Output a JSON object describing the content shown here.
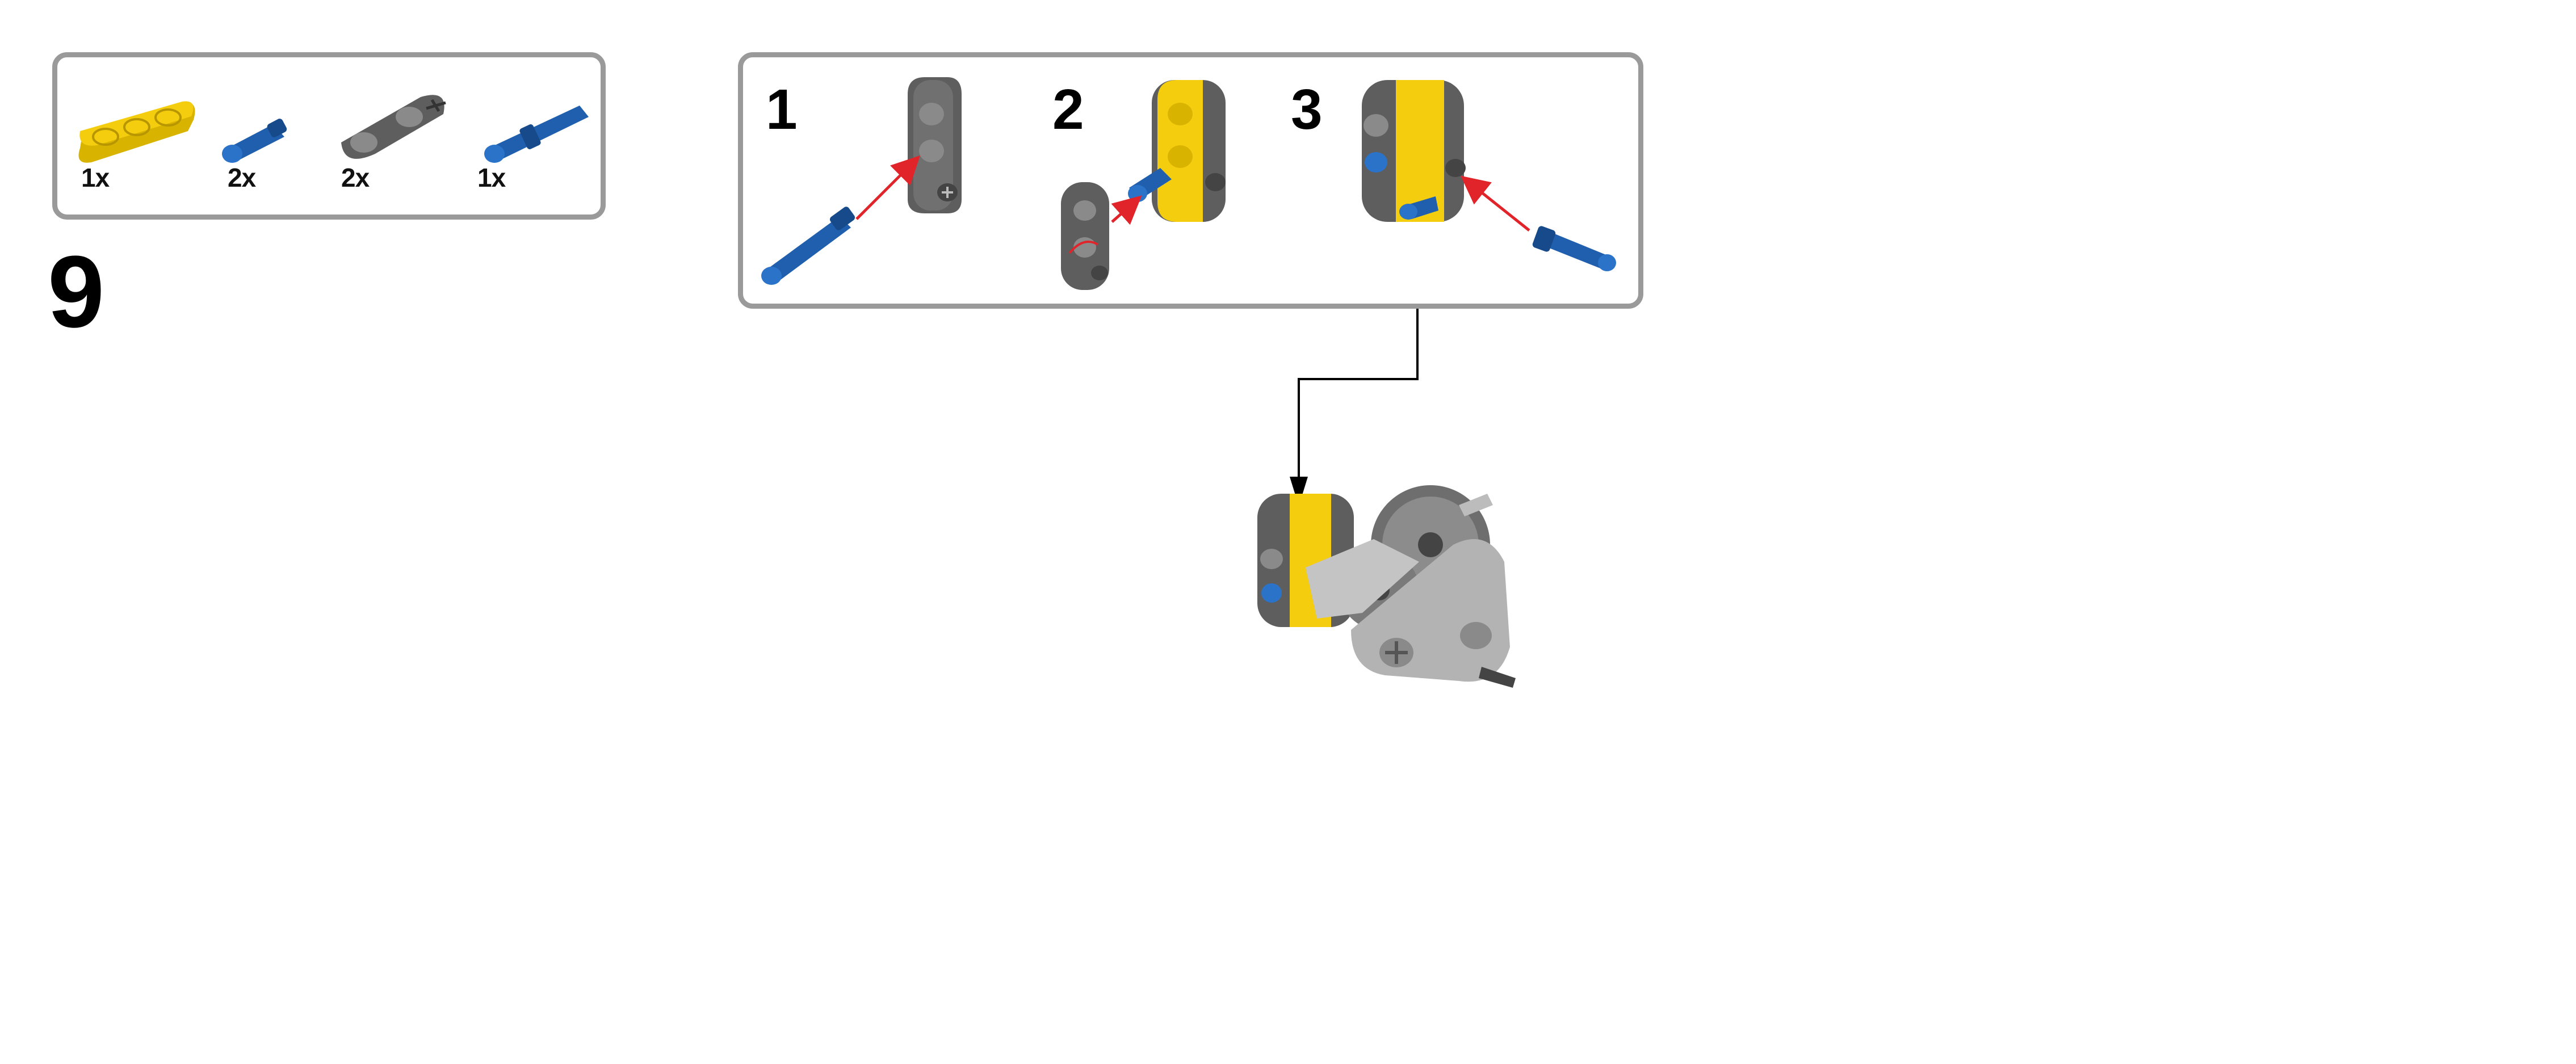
{
  "parts_list": [
    {
      "part": "yellow-beam-3",
      "qty": "1x"
    },
    {
      "part": "blue-pin-short",
      "qty": "2x"
    },
    {
      "part": "gray-connector",
      "qty": "2x"
    },
    {
      "part": "blue-pin-long",
      "qty": "1x"
    }
  ],
  "step": {
    "number": "9"
  },
  "substeps": [
    {
      "number": "1"
    },
    {
      "number": "2"
    },
    {
      "number": "3"
    }
  ],
  "colors": {
    "yellow": "#f5cd0f",
    "blue": "#1f5fae",
    "dark_gray": "#5e5e5e",
    "light_gray": "#a9a9a9",
    "arrow_red": "#e0242a",
    "frame": "#9a9a9a"
  }
}
